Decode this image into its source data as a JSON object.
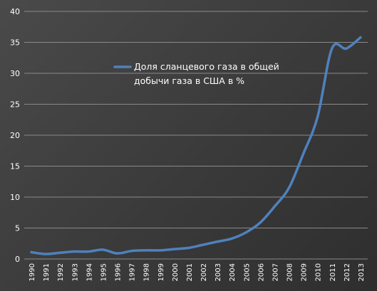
{
  "chart_data": {
    "type": "line",
    "title": "",
    "xlabel": "",
    "ylabel": "",
    "categories": [
      "1990",
      "1991",
      "1992",
      "1993",
      "1994",
      "1995",
      "1996",
      "1997",
      "1998",
      "1999",
      "2000",
      "2001",
      "2002",
      "2003",
      "2004",
      "2005",
      "2006",
      "2007",
      "2008",
      "2009",
      "2010",
      "2011",
      "2012",
      "2013"
    ],
    "ylim": [
      0,
      40
    ],
    "yticks": [
      0,
      5,
      10,
      15,
      20,
      25,
      30,
      35,
      40
    ],
    "grid": true,
    "legend_position": "top-center",
    "series": [
      {
        "name": "Доля сланцевого газа в общей добычи газа в США в %",
        "name_lines": [
          "Доля сланцевого газа в общей",
          "добычи газа в США в %"
        ],
        "color": "#4f81bd",
        "values": [
          1.1,
          0.8,
          1.0,
          1.2,
          1.2,
          1.5,
          0.9,
          1.3,
          1.4,
          1.4,
          1.6,
          1.8,
          2.3,
          2.8,
          3.3,
          4.3,
          5.9,
          8.5,
          11.5,
          17.0,
          23.0,
          34.0,
          34.0,
          35.8
        ]
      }
    ]
  }
}
